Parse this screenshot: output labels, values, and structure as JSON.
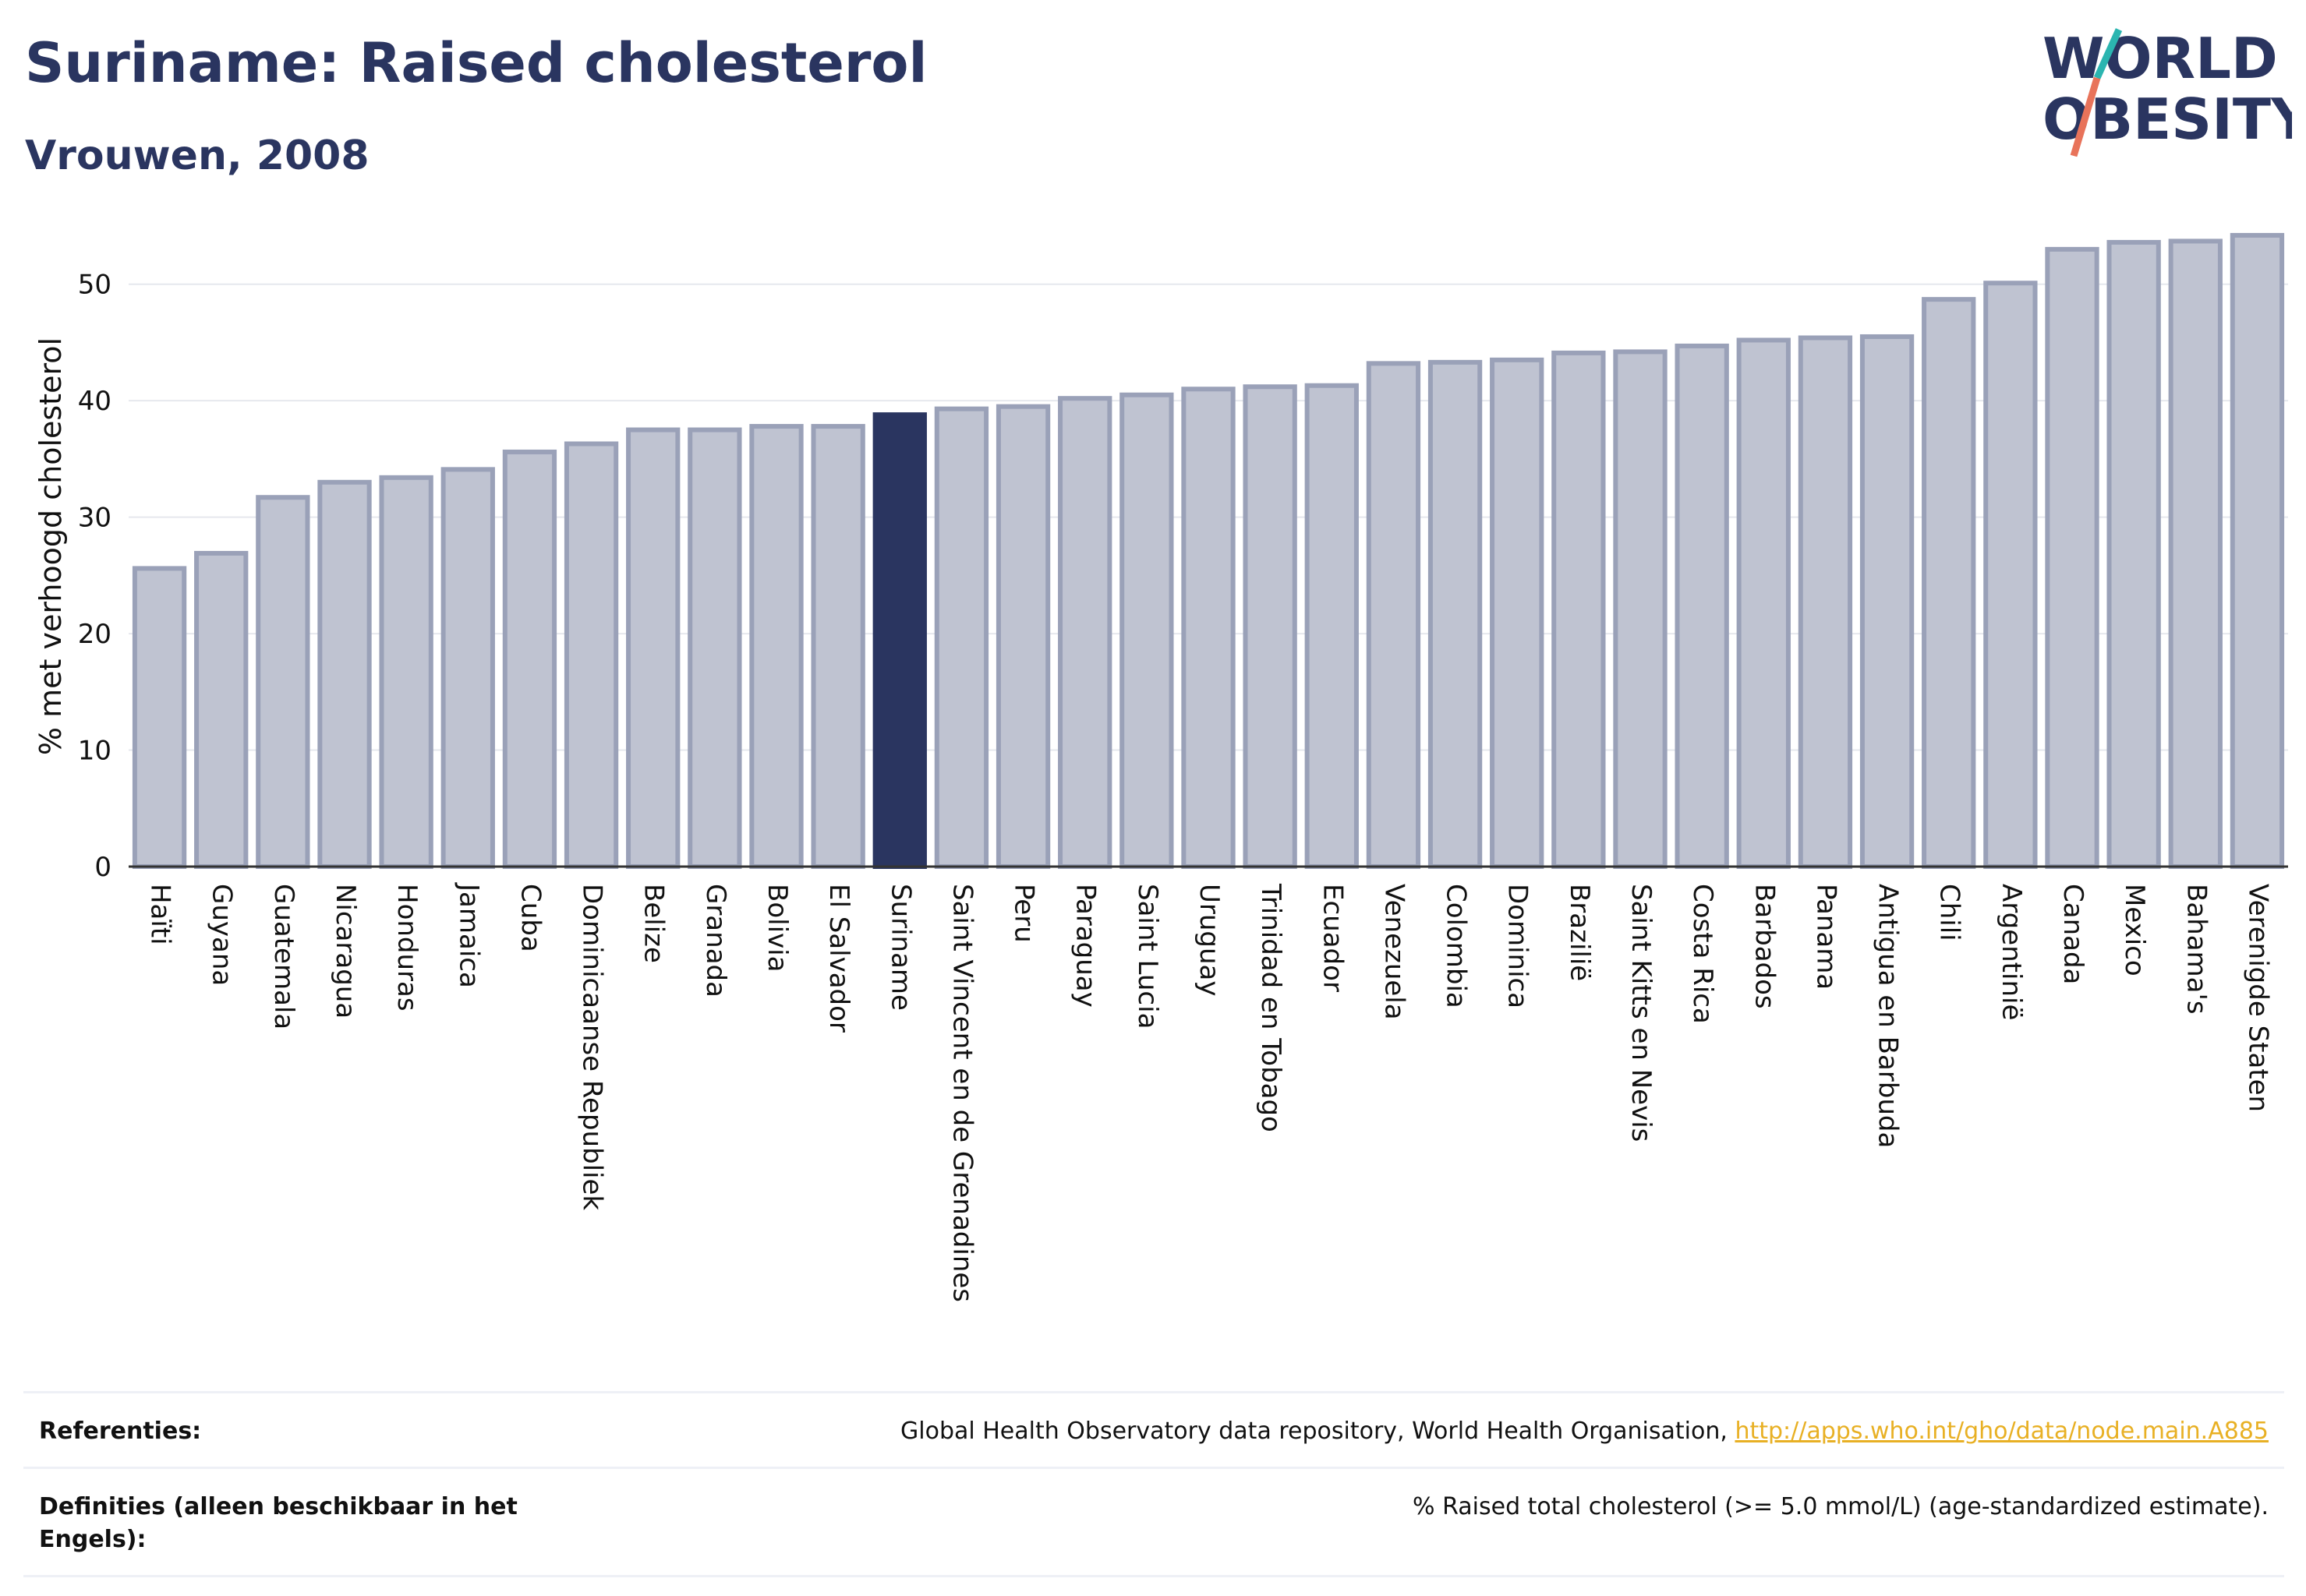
{
  "header": {
    "title": "Suriname: Raised cholesterol",
    "subtitle": "Vrouwen, 2008"
  },
  "logo": {
    "line1": "WORLD",
    "line2": "OBESITY",
    "accent_colors": [
      "#2bb5b0",
      "#e8735a"
    ]
  },
  "colors": {
    "bar": "#bfc3d1",
    "bar_border": "#9aa1b8",
    "highlight": "#2a3560",
    "grid": "#e6e8ee",
    "link": "#e8b024"
  },
  "chart_data": {
    "type": "bar",
    "ylabel": "% met verhoogd cholesterol",
    "xlabel": "",
    "ylim": [
      0,
      55
    ],
    "yticks": [
      0,
      10,
      20,
      30,
      40,
      50
    ],
    "grid": true,
    "highlight": "Suriname",
    "categories": [
      "Haïti",
      "Guyana",
      "Guatemala",
      "Nicaragua",
      "Honduras",
      "Jamaica",
      "Cuba",
      "Dominicaanse Republiek",
      "Belize",
      "Granada",
      "Bolivia",
      "El Salvador",
      "Suriname",
      "Saint Vincent en de Grenadines",
      "Peru",
      "Paraguay",
      "Saint Lucia",
      "Uruguay",
      "Trinidad en Tobago",
      "Ecuador",
      "Venezuela",
      "Colombia",
      "Dominica",
      "Brazilië",
      "Saint Kitts en Nevis",
      "Costa Rica",
      "Barbados",
      "Panama",
      "Antigua en Barbuda",
      "Chili",
      "Argentinië",
      "Canada",
      "Mexico",
      "Bahama's",
      "Verenigde Staten"
    ],
    "values": [
      25.6,
      26.9,
      31.7,
      33.0,
      33.4,
      34.1,
      35.6,
      36.3,
      37.5,
      37.5,
      37.8,
      37.8,
      38.8,
      39.3,
      39.5,
      40.2,
      40.5,
      41.0,
      41.2,
      41.3,
      43.2,
      43.3,
      43.5,
      44.1,
      44.2,
      44.7,
      45.2,
      45.4,
      45.5,
      48.7,
      50.1,
      53.0,
      53.6,
      53.7,
      54.2
    ]
  },
  "references": {
    "ref_label": "Referenties:",
    "ref_text": "Global Health Observatory data repository, World Health Organisation, ",
    "ref_link": "http://apps.who.int/gho/data/node.main.A885",
    "def_label": "Definities (alleen beschikbaar in het Engels):",
    "def_text": "% Raised total cholesterol (>= 5.0 mmol/L) (age-standardized estimate)."
  }
}
